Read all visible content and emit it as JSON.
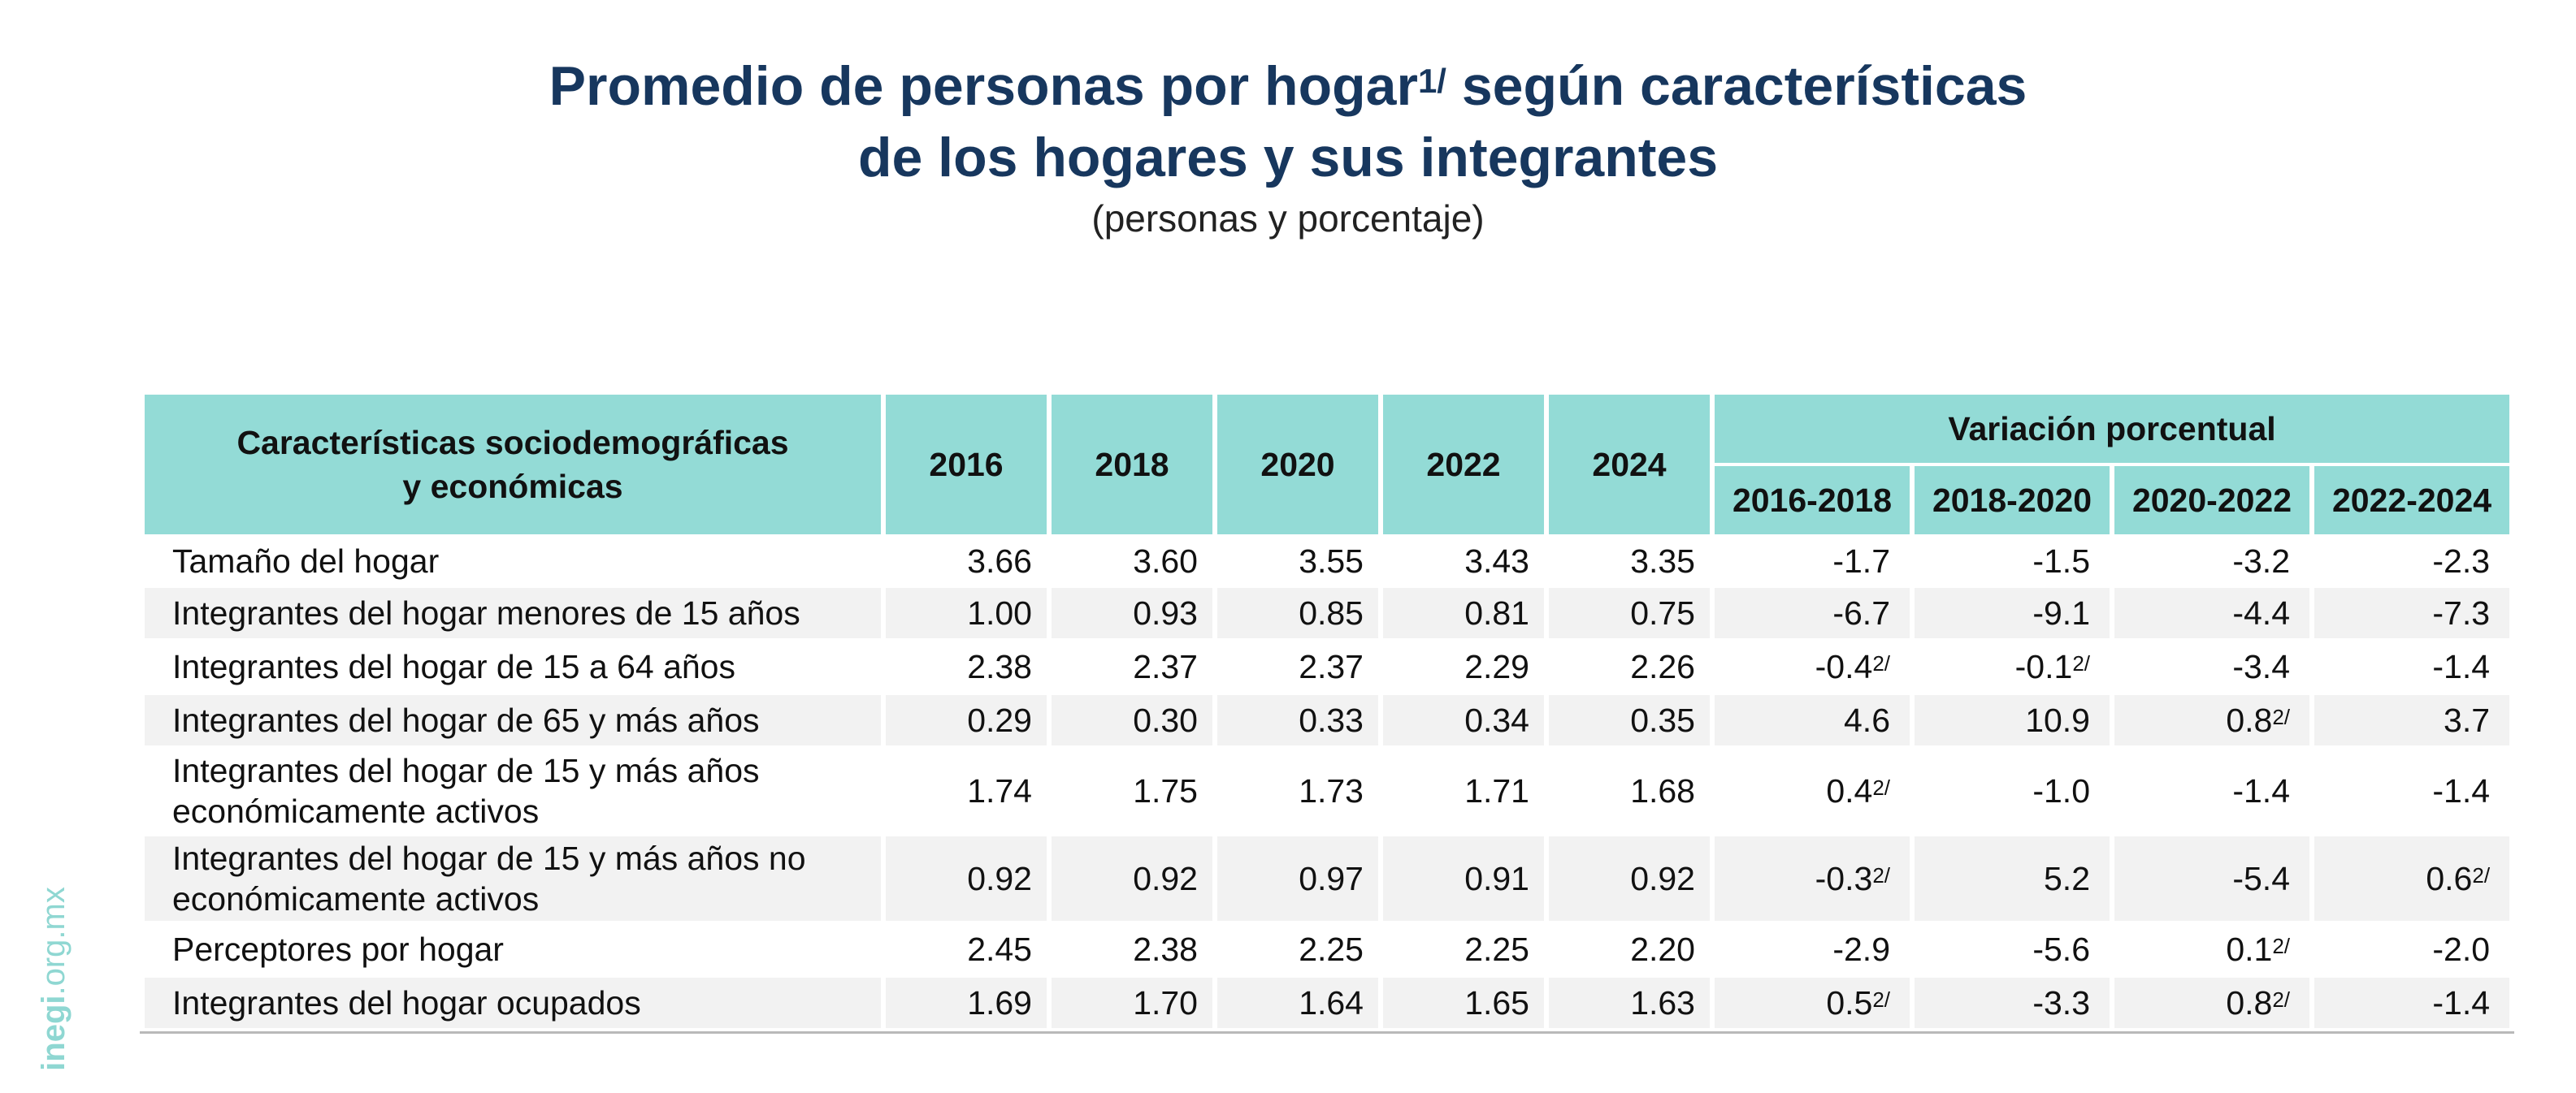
{
  "title": {
    "line1_pre": "Promedio de personas por hogar",
    "line1_sup": "1/",
    "line1_post": " según características",
    "line2": "de los hogares y sus integrantes",
    "subtitle": "(personas y porcentaje)"
  },
  "brand": {
    "bold": "inegi",
    "rest": ".org.mx"
  },
  "table": {
    "header": {
      "characteristic_line1": "Características sociodemográficas",
      "characteristic_line2": "y económicas",
      "years": [
        "2016",
        "2018",
        "2020",
        "2022",
        "2024"
      ],
      "variation_label": "Variación porcentual",
      "periods": [
        "2016-2018",
        "2018-2020",
        "2020-2022",
        "2022-2024"
      ]
    },
    "rows": [
      {
        "line1": "Tamaño del hogar",
        "line2": "",
        "values": [
          "3.66",
          "3.60",
          "3.55",
          "3.43",
          "3.35"
        ],
        "variation": [
          {
            "v": "-1.7",
            "note": ""
          },
          {
            "v": "-1.5",
            "note": ""
          },
          {
            "v": "-3.2",
            "note": ""
          },
          {
            "v": "-2.3",
            "note": ""
          }
        ]
      },
      {
        "line1": "Integrantes del hogar menores de 15 años",
        "line2": "",
        "values": [
          "1.00",
          "0.93",
          "0.85",
          "0.81",
          "0.75"
        ],
        "variation": [
          {
            "v": "-6.7",
            "note": ""
          },
          {
            "v": "-9.1",
            "note": ""
          },
          {
            "v": "-4.4",
            "note": ""
          },
          {
            "v": "-7.3",
            "note": ""
          }
        ]
      },
      {
        "line1": "Integrantes del hogar de 15 a 64 años",
        "line2": "",
        "values": [
          "2.38",
          "2.37",
          "2.37",
          "2.29",
          "2.26"
        ],
        "variation": [
          {
            "v": "-0.4",
            "note": "2/"
          },
          {
            "v": "-0.1",
            "note": "2/"
          },
          {
            "v": "-3.4",
            "note": ""
          },
          {
            "v": "-1.4",
            "note": ""
          }
        ]
      },
      {
        "line1": "Integrantes del hogar de 65 y más años",
        "line2": "",
        "values": [
          "0.29",
          "0.30",
          "0.33",
          "0.34",
          "0.35"
        ],
        "variation": [
          {
            "v": "4.6",
            "note": ""
          },
          {
            "v": "10.9",
            "note": ""
          },
          {
            "v": "0.8",
            "note": "2/"
          },
          {
            "v": "3.7",
            "note": ""
          }
        ]
      },
      {
        "line1": "Integrantes del hogar de 15 y más años",
        "line2": "económicamente activos",
        "values": [
          "1.74",
          "1.75",
          "1.73",
          "1.71",
          "1.68"
        ],
        "variation": [
          {
            "v": "0.4",
            "note": "2/"
          },
          {
            "v": "-1.0",
            "note": ""
          },
          {
            "v": "-1.4",
            "note": ""
          },
          {
            "v": "-1.4",
            "note": ""
          }
        ]
      },
      {
        "line1": "Integrantes del hogar de 15 y más años no",
        "line2": "económicamente activos",
        "values": [
          "0.92",
          "0.92",
          "0.97",
          "0.91",
          "0.92"
        ],
        "variation": [
          {
            "v": "-0.3",
            "note": "2/"
          },
          {
            "v": "5.2",
            "note": ""
          },
          {
            "v": "-5.4",
            "note": ""
          },
          {
            "v": "0.6",
            "note": "2/"
          }
        ]
      },
      {
        "line1": "Perceptores por hogar",
        "line2": "",
        "values": [
          "2.45",
          "2.38",
          "2.25",
          "2.25",
          "2.20"
        ],
        "variation": [
          {
            "v": "-2.9",
            "note": ""
          },
          {
            "v": "-5.6",
            "note": ""
          },
          {
            "v": "0.1",
            "note": "2/"
          },
          {
            "v": "-2.0",
            "note": ""
          }
        ]
      },
      {
        "line1": "Integrantes del hogar ocupados",
        "line2": "",
        "values": [
          "1.69",
          "1.70",
          "1.64",
          "1.65",
          "1.63"
        ],
        "variation": [
          {
            "v": "0.5",
            "note": "2/"
          },
          {
            "v": "-3.3",
            "note": ""
          },
          {
            "v": "0.8",
            "note": "2/"
          },
          {
            "v": "-1.4",
            "note": ""
          }
        ]
      }
    ]
  },
  "colors": {
    "title": "#17375e",
    "header_bg": "#93dbd6",
    "stripe": "#f2f2f2",
    "brand": "#8fd7d2"
  }
}
